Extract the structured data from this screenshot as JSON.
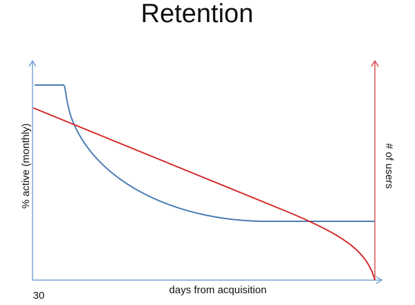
{
  "title": "Retention",
  "y_axis_label": "% active (monthly)",
  "y2_axis_label": "# of users",
  "x_axis_label": "days from acquisition",
  "x_tick": "30"
}
